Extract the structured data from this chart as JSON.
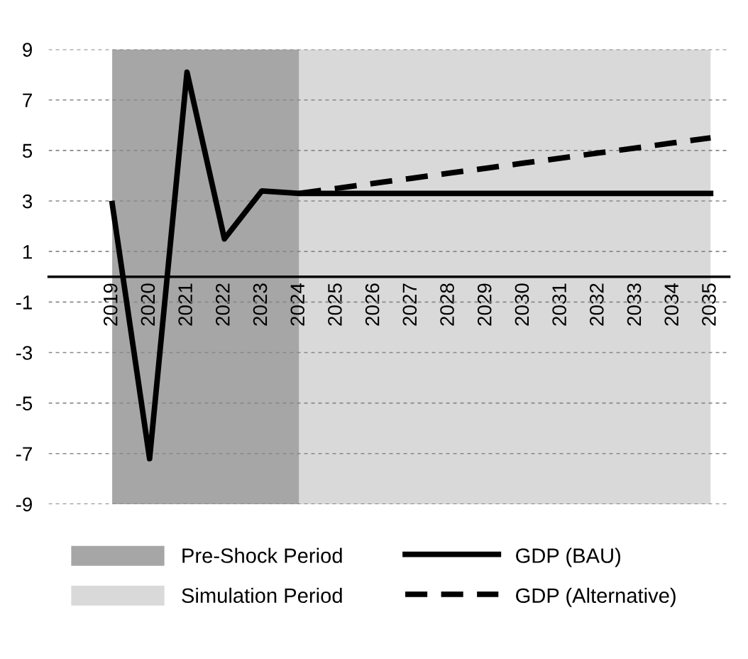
{
  "chart_data": {
    "type": "line",
    "categories": [
      "2019",
      "2020",
      "2021",
      "2022",
      "2023",
      "2024",
      "2025",
      "2026",
      "2027",
      "2028",
      "2029",
      "2030",
      "2031",
      "2032",
      "2033",
      "2034",
      "2035"
    ],
    "series": [
      {
        "name": "GDP (BAU)",
        "color": "#000000",
        "line_style": "solid",
        "values": [
          2.9,
          -7.2,
          8.1,
          1.5,
          3.4,
          3.3,
          3.3,
          3.3,
          3.3,
          3.3,
          3.3,
          3.3,
          3.3,
          3.3,
          3.3,
          3.3,
          3.3
        ]
      },
      {
        "name": "GDP (Alternative)",
        "color": "#000000",
        "line_style": "dashed",
        "values": [
          null,
          null,
          null,
          null,
          null,
          3.3,
          3.5,
          3.7,
          3.9,
          4.1,
          4.3,
          4.5,
          4.7,
          4.9,
          5.1,
          5.3,
          5.5
        ]
      }
    ],
    "bands": [
      {
        "axis": "x",
        "from": "2019",
        "to": "2024",
        "label": "Pre-Shock Period",
        "color": "#a6a6a6"
      },
      {
        "axis": "x",
        "from": "2024",
        "to": "2035",
        "label": "Simulation Period",
        "color": "#d9d9d9"
      }
    ],
    "ylim": [
      -9,
      9
    ],
    "yticks": [
      -9,
      -7,
      -5,
      -3,
      -1,
      1,
      3,
      5,
      7,
      9
    ],
    "grid": "y",
    "legend": "bottom"
  }
}
